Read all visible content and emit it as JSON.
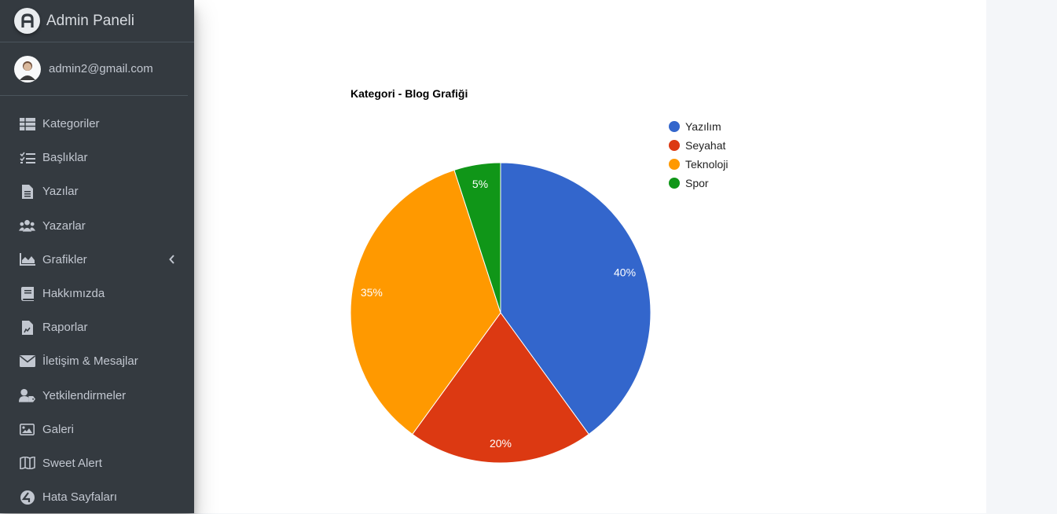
{
  "brand": {
    "title": "Admin Paneli"
  },
  "user": {
    "email": "admin2@gmail.com"
  },
  "sidebar": {
    "items": [
      {
        "label": "Kategoriler",
        "icon": "table-icon"
      },
      {
        "label": "Başlıklar",
        "icon": "tasks-icon"
      },
      {
        "label": "Yazılar",
        "icon": "file-icon"
      },
      {
        "label": "Yazarlar",
        "icon": "users-icon"
      },
      {
        "label": "Grafikler",
        "icon": "chart-area-icon"
      },
      {
        "label": "Hakkımızda",
        "icon": "book-icon"
      },
      {
        "label": "Raporlar",
        "icon": "file-chart-icon"
      },
      {
        "label": "İletişim & Mesajlar",
        "icon": "envelope-icon"
      },
      {
        "label": "Yetkilendirmeler",
        "icon": "user-tag-icon"
      },
      {
        "label": "Galeri",
        "icon": "image-icon"
      },
      {
        "label": "Sweet Alert",
        "icon": "map-icon"
      },
      {
        "label": "Hata Sayfaları",
        "icon": "error-icon"
      }
    ]
  },
  "chart_data": {
    "type": "pie",
    "title": "Kategori - Blog Grafiği",
    "categories": [
      "Yazılım",
      "Seyahat",
      "Teknoloji",
      "Spor"
    ],
    "values": [
      40,
      20,
      35,
      5
    ],
    "labels": [
      "40%",
      "20%",
      "35%",
      "5%"
    ],
    "colors": [
      "#3366cc",
      "#dc3912",
      "#ff9900",
      "#109618"
    ],
    "legend": "right"
  }
}
